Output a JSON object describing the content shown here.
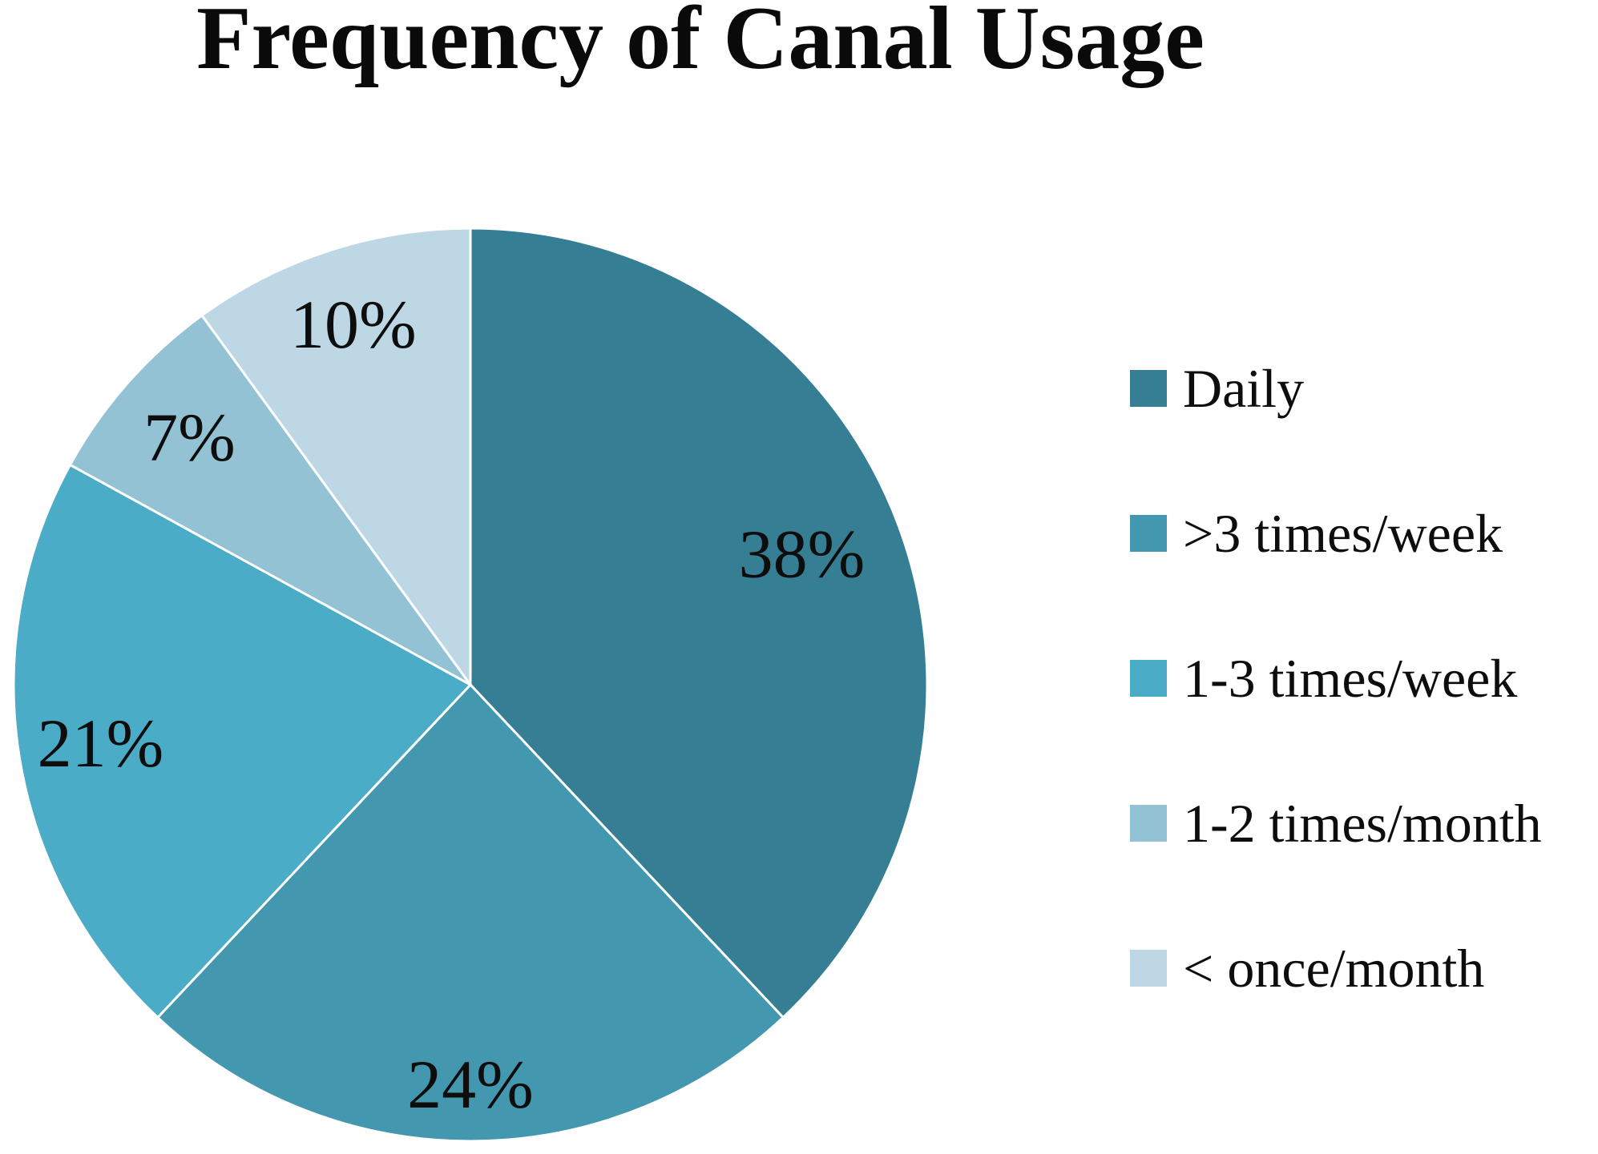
{
  "title": "Frequency of Canal Usage",
  "chart_data": {
    "type": "pie",
    "title": "Frequency of Canal Usage",
    "direction": "clockwise",
    "start_angle_deg": 0,
    "legend_position": "right",
    "data_labels": "percent-inside",
    "slices": [
      {
        "label": "Daily",
        "value": 38,
        "data_label": "38%",
        "color": "#367E94"
      },
      {
        "label": ">3 times/week",
        "value": 24,
        "data_label": "24%",
        "color": "#4398B0"
      },
      {
        "label": "1-3 times/week",
        "value": 21,
        "data_label": "21%",
        "color": "#4AACC6"
      },
      {
        "label": "1-2 times/month",
        "value": 7,
        "data_label": "7%",
        "color": "#93C2D4"
      },
      {
        "label": "< once/month",
        "value": 10,
        "data_label": "10%",
        "color": "#BDD8E4"
      }
    ],
    "slice_border_color": "#ffffff"
  }
}
